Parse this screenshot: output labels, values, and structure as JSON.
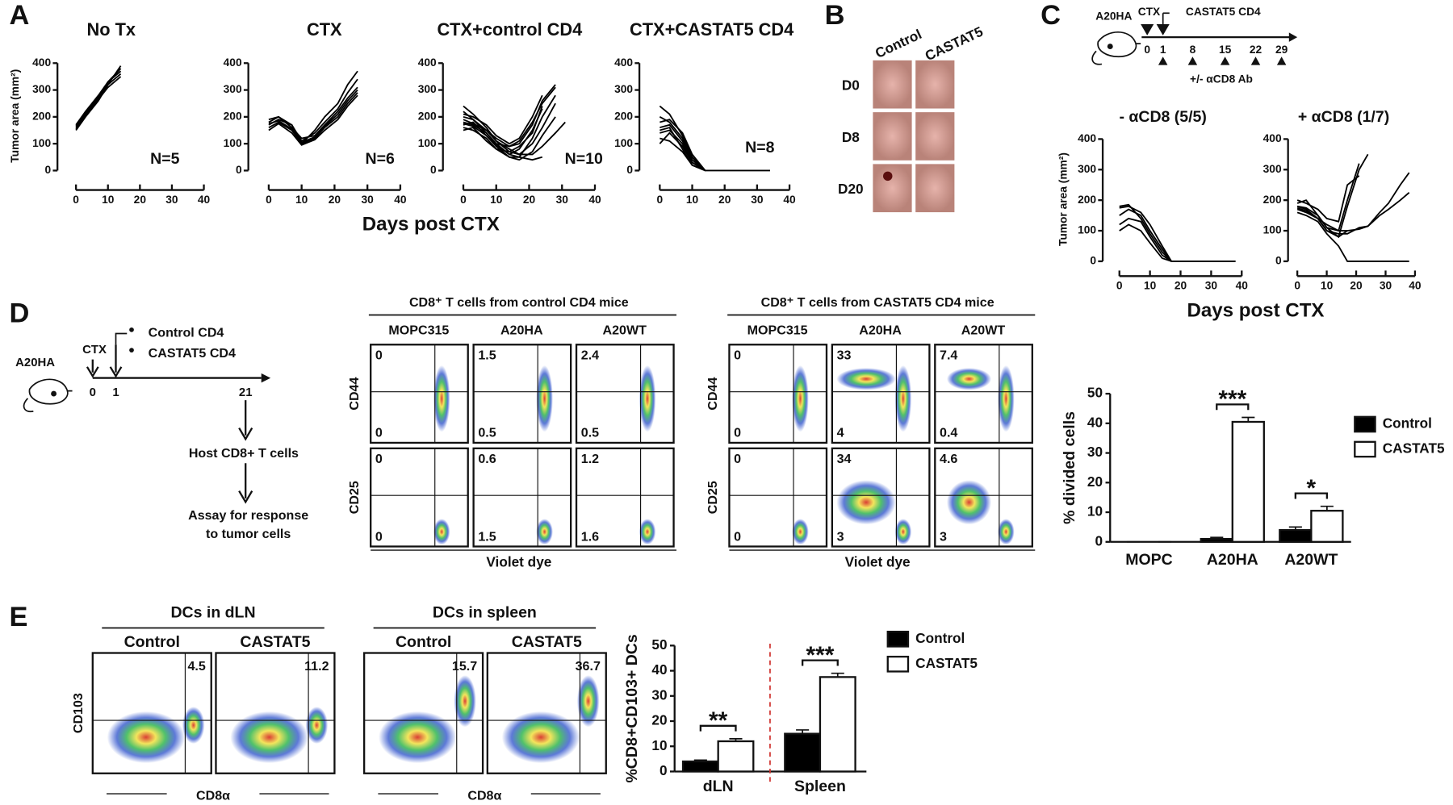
{
  "panel_labels": [
    "A",
    "B",
    "C",
    "D",
    "E"
  ],
  "panel_a": {
    "ylabel": "Tumor area (mm²)",
    "xlabel": "Days post CTX"
  },
  "panel_b": {
    "columns": [
      "Control",
      "CASTAT5"
    ],
    "rows": [
      "D0",
      "D8",
      "D20"
    ]
  },
  "panel_c": {
    "ylabel": "Tumor area (mm²)",
    "xlabel": "Days post CTX"
  },
  "panel_c_timeline": {
    "tumor": "A20HA",
    "treatment": "CTX",
    "cells": "CASTAT5 CD4",
    "days": [
      0,
      1,
      8,
      15,
      22,
      29
    ],
    "antibody": "+/- αCD8 Ab"
  },
  "panel_d_timeline": {
    "tumor": "A20HA",
    "treatment": "CTX",
    "days": [
      0,
      1,
      21
    ],
    "groups": [
      "Control CD4",
      "CASTAT5 CD4"
    ],
    "step1": "Host CD8+ T cells",
    "step2": [
      "Assay for response",
      "to tumor cells"
    ]
  },
  "panel_d_flow": {
    "xlabel": "Violet dye",
    "groups": [
      {
        "title": "CD8⁺ T cells from control CD4 mice",
        "columns": [
          "MOPC315",
          "A20HA",
          "A20WT"
        ],
        "rows": [
          {
            "marker": "CD44",
            "quadrants": [
              [
                0,
                0
              ],
              [
                1.5,
                0.5
              ],
              [
                2.4,
                0.5
              ]
            ]
          },
          {
            "marker": "CD25",
            "quadrants": [
              [
                0,
                0
              ],
              [
                0.6,
                1.5
              ],
              [
                1.2,
                1.6
              ]
            ]
          }
        ]
      },
      {
        "title": "CD8⁺ T cells from CASTAT5 CD4 mice",
        "columns": [
          "MOPC315",
          "A20HA",
          "A20WT"
        ],
        "rows": [
          {
            "marker": "CD44",
            "quadrants": [
              [
                0,
                0
              ],
              [
                33,
                4
              ],
              [
                7.4,
                0.4
              ]
            ]
          },
          {
            "marker": "CD25",
            "quadrants": [
              [
                0,
                0
              ],
              [
                34,
                3
              ],
              [
                4.6,
                3
              ]
            ]
          }
        ]
      }
    ]
  },
  "panel_e_flow": {
    "ylabel": "CD103",
    "groups": [
      {
        "title": "DCs in dLN",
        "columns": [
          "Control",
          "CASTAT5"
        ],
        "values": [
          4.5,
          11.2
        ],
        "xlabel": "CD8α"
      },
      {
        "title": "DCs in spleen",
        "columns": [
          "Control",
          "CASTAT5"
        ],
        "values": [
          15.7,
          36.7
        ],
        "xlabel": "CD8α"
      }
    ]
  },
  "chart_data": [
    {
      "type": "line",
      "title": "No Tx",
      "annotation": "N=5",
      "color": "#000000",
      "x": [
        0,
        3,
        7,
        10,
        14
      ],
      "xlim": [
        0,
        40
      ],
      "xticks": [
        0,
        10,
        20,
        30,
        40
      ],
      "ylim": [
        0,
        400
      ],
      "yticks": [
        0,
        100,
        200,
        300,
        400
      ],
      "series": [
        {
          "values": [
            150,
            200,
            260,
            320,
            390
          ]
        },
        {
          "values": [
            160,
            210,
            270,
            330,
            380
          ]
        },
        {
          "values": [
            170,
            220,
            280,
            330,
            370
          ]
        },
        {
          "values": [
            155,
            205,
            265,
            310,
            350
          ]
        },
        {
          "values": [
            165,
            215,
            275,
            320,
            360
          ]
        }
      ]
    },
    {
      "type": "line",
      "title": "CTX",
      "annotation": "N=6",
      "color": "#000000",
      "x": [
        0,
        3,
        7,
        10,
        14,
        17,
        21,
        24,
        27
      ],
      "xlim": [
        0,
        40
      ],
      "xticks": [
        0,
        10,
        20,
        30,
        40
      ],
      "ylim": [
        0,
        400
      ],
      "yticks": [
        0,
        100,
        200,
        300,
        400
      ],
      "series": [
        {
          "values": [
            160,
            180,
            150,
            100,
            150,
            200,
            250,
            320,
            370
          ]
        },
        {
          "values": [
            170,
            190,
            170,
            110,
            140,
            180,
            230,
            290,
            340
          ]
        },
        {
          "values": [
            180,
            200,
            160,
            120,
            130,
            170,
            220,
            270,
            310
          ]
        },
        {
          "values": [
            190,
            200,
            170,
            100,
            120,
            160,
            200,
            250,
            290
          ]
        },
        {
          "values": [
            150,
            175,
            140,
            95,
            115,
            150,
            190,
            240,
            280
          ]
        },
        {
          "values": [
            175,
            185,
            155,
            105,
            125,
            165,
            210,
            260,
            300
          ]
        }
      ]
    },
    {
      "type": "line",
      "title": "CTX+control CD4",
      "annotation": "N=10",
      "color": "#000000",
      "x": [
        0,
        3,
        7,
        10,
        14,
        17,
        21,
        24,
        28,
        31
      ],
      "xlim": [
        0,
        40
      ],
      "xticks": [
        0,
        10,
        20,
        30,
        40
      ],
      "ylim": [
        0,
        400
      ],
      "yticks": [
        0,
        100,
        200,
        300,
        400
      ],
      "series": [
        {
          "values": [
            240,
            210,
            160,
            110,
            70,
            60,
            100,
            160,
            250,
            null
          ]
        },
        {
          "values": [
            200,
            190,
            150,
            120,
            90,
            110,
            180,
            250,
            310,
            null
          ]
        },
        {
          "values": [
            180,
            170,
            140,
            100,
            60,
            80,
            150,
            230,
            null,
            null
          ]
        },
        {
          "values": [
            170,
            180,
            130,
            90,
            50,
            50,
            120,
            200,
            280,
            null
          ]
        },
        {
          "values": [
            160,
            150,
            120,
            80,
            70,
            90,
            140,
            240,
            null,
            null
          ]
        },
        {
          "values": [
            210,
            200,
            170,
            130,
            100,
            120,
            200,
            280,
            null,
            null
          ]
        },
        {
          "values": [
            190,
            175,
            150,
            110,
            80,
            60,
            60,
            90,
            140,
            180
          ]
        },
        {
          "values": [
            150,
            160,
            110,
            80,
            50,
            40,
            70,
            130,
            200,
            null
          ]
        },
        {
          "values": [
            220,
            190,
            140,
            100,
            90,
            100,
            170,
            260,
            320,
            null
          ]
        },
        {
          "values": [
            175,
            165,
            130,
            95,
            60,
            50,
            40,
            50,
            null,
            null
          ]
        }
      ]
    },
    {
      "type": "line",
      "title": "CTX+CASTAT5 CD4",
      "annotation": "N=8",
      "color": "#000000",
      "x": [
        0,
        3,
        7,
        10,
        14,
        17,
        21,
        24,
        28,
        31,
        34
      ],
      "xlim": [
        0,
        40
      ],
      "xticks": [
        0,
        10,
        20,
        30,
        40
      ],
      "ylim": [
        0,
        400
      ],
      "yticks": [
        0,
        100,
        200,
        300,
        400
      ],
      "series": [
        {
          "values": [
            240,
            210,
            130,
            50,
            0,
            0,
            0,
            0,
            0,
            0,
            0
          ]
        },
        {
          "values": [
            180,
            190,
            140,
            60,
            0,
            null,
            null,
            null,
            null,
            null,
            null
          ]
        },
        {
          "values": [
            160,
            170,
            110,
            40,
            0,
            null,
            null,
            null,
            null,
            null,
            null
          ]
        },
        {
          "values": [
            140,
            150,
            100,
            30,
            0,
            null,
            null,
            null,
            null,
            null,
            null
          ]
        },
        {
          "values": [
            120,
            110,
            70,
            20,
            0,
            null,
            null,
            null,
            null,
            null,
            null
          ]
        },
        {
          "values": [
            100,
            140,
            90,
            30,
            0,
            null,
            null,
            null,
            null,
            null,
            null
          ]
        },
        {
          "values": [
            200,
            180,
            120,
            40,
            0,
            null,
            null,
            null,
            null,
            null,
            null
          ]
        },
        {
          "values": [
            150,
            160,
            80,
            20,
            0,
            null,
            null,
            null,
            null,
            null,
            null
          ]
        }
      ]
    },
    {
      "type": "line",
      "title": "- αCD8 (5/5)",
      "color": "#000000",
      "x": [
        0,
        3,
        7,
        10,
        14,
        17,
        21,
        24,
        28,
        31,
        35,
        38
      ],
      "xlim": [
        0,
        40
      ],
      "xticks": [
        0,
        10,
        20,
        30,
        40
      ],
      "ylim": [
        0,
        400
      ],
      "yticks": [
        0,
        100,
        200,
        300,
        400
      ],
      "series": [
        {
          "values": [
            175,
            180,
            160,
            120,
            50,
            0,
            0,
            0,
            0,
            0,
            0,
            0
          ]
        },
        {
          "values": [
            150,
            170,
            150,
            100,
            40,
            0,
            null,
            null,
            null,
            null,
            null,
            null
          ]
        },
        {
          "values": [
            120,
            140,
            130,
            80,
            20,
            0,
            null,
            null,
            null,
            null,
            null,
            null
          ]
        },
        {
          "values": [
            100,
            120,
            100,
            60,
            10,
            0,
            null,
            null,
            null,
            null,
            null,
            null
          ]
        },
        {
          "values": [
            180,
            185,
            140,
            90,
            30,
            0,
            null,
            null,
            null,
            null,
            null,
            null
          ]
        }
      ]
    },
    {
      "type": "line",
      "title": "+ αCD8 (1/7)",
      "color": "#000000",
      "x": [
        0,
        3,
        7,
        10,
        14,
        17,
        21,
        24,
        28,
        31,
        35,
        38
      ],
      "xlim": [
        0,
        40
      ],
      "xticks": [
        0,
        10,
        20,
        30,
        40
      ],
      "ylim": [
        0,
        400
      ],
      "yticks": [
        0,
        100,
        200,
        300,
        400
      ],
      "series": [
        {
          "values": [
            190,
            200,
            150,
            110,
            80,
            180,
            300,
            350,
            null,
            null,
            null,
            null
          ]
        },
        {
          "values": [
            180,
            170,
            140,
            120,
            100,
            200,
            320,
            null,
            null,
            null,
            null,
            null
          ]
        },
        {
          "values": [
            200,
            190,
            170,
            140,
            130,
            250,
            280,
            null,
            null,
            null,
            null,
            null
          ]
        },
        {
          "values": [
            170,
            160,
            140,
            100,
            90,
            90,
            110,
            115,
            160,
            190,
            250,
            290
          ]
        },
        {
          "values": [
            180,
            175,
            150,
            110,
            100,
            100,
            105,
            115,
            150,
            170,
            200,
            225
          ]
        },
        {
          "values": [
            160,
            150,
            130,
            90,
            50,
            0,
            0,
            0,
            0,
            0,
            0,
            0
          ]
        },
        {
          "values": [
            175,
            165,
            140,
            100,
            80,
            100,
            null,
            null,
            null,
            null,
            null,
            null
          ]
        }
      ]
    },
    {
      "type": "bar",
      "ylabel": "% divided cells",
      "categories": [
        "MOPC",
        "A20HA",
        "A20WT"
      ],
      "ylim": [
        0,
        50
      ],
      "yticks": [
        0,
        10,
        20,
        30,
        40,
        50
      ],
      "significance": [
        null,
        "***",
        "*"
      ],
      "series": [
        {
          "name": "Control",
          "color": "#000000",
          "values": [
            0,
            1,
            4
          ],
          "errors": [
            0,
            0.5,
            1
          ]
        },
        {
          "name": "CASTAT5",
          "color": "#ffffff",
          "values": [
            0,
            40.5,
            10.5
          ],
          "errors": [
            0,
            1.5,
            1.5
          ]
        }
      ]
    },
    {
      "type": "bar",
      "ylabel": "%CD8+CD103+ DCs",
      "categories": [
        "dLN",
        "Spleen"
      ],
      "ylim": [
        0,
        50
      ],
      "yticks": [
        0,
        10,
        20,
        30,
        40,
        50
      ],
      "significance": [
        "**",
        "***"
      ],
      "series": [
        {
          "name": "Control",
          "color": "#000000",
          "values": [
            4,
            15
          ],
          "errors": [
            0.5,
            1.5
          ]
        },
        {
          "name": "CASTAT5",
          "color": "#ffffff",
          "values": [
            12,
            37.5
          ],
          "errors": [
            1,
            1.5
          ]
        }
      ]
    }
  ]
}
